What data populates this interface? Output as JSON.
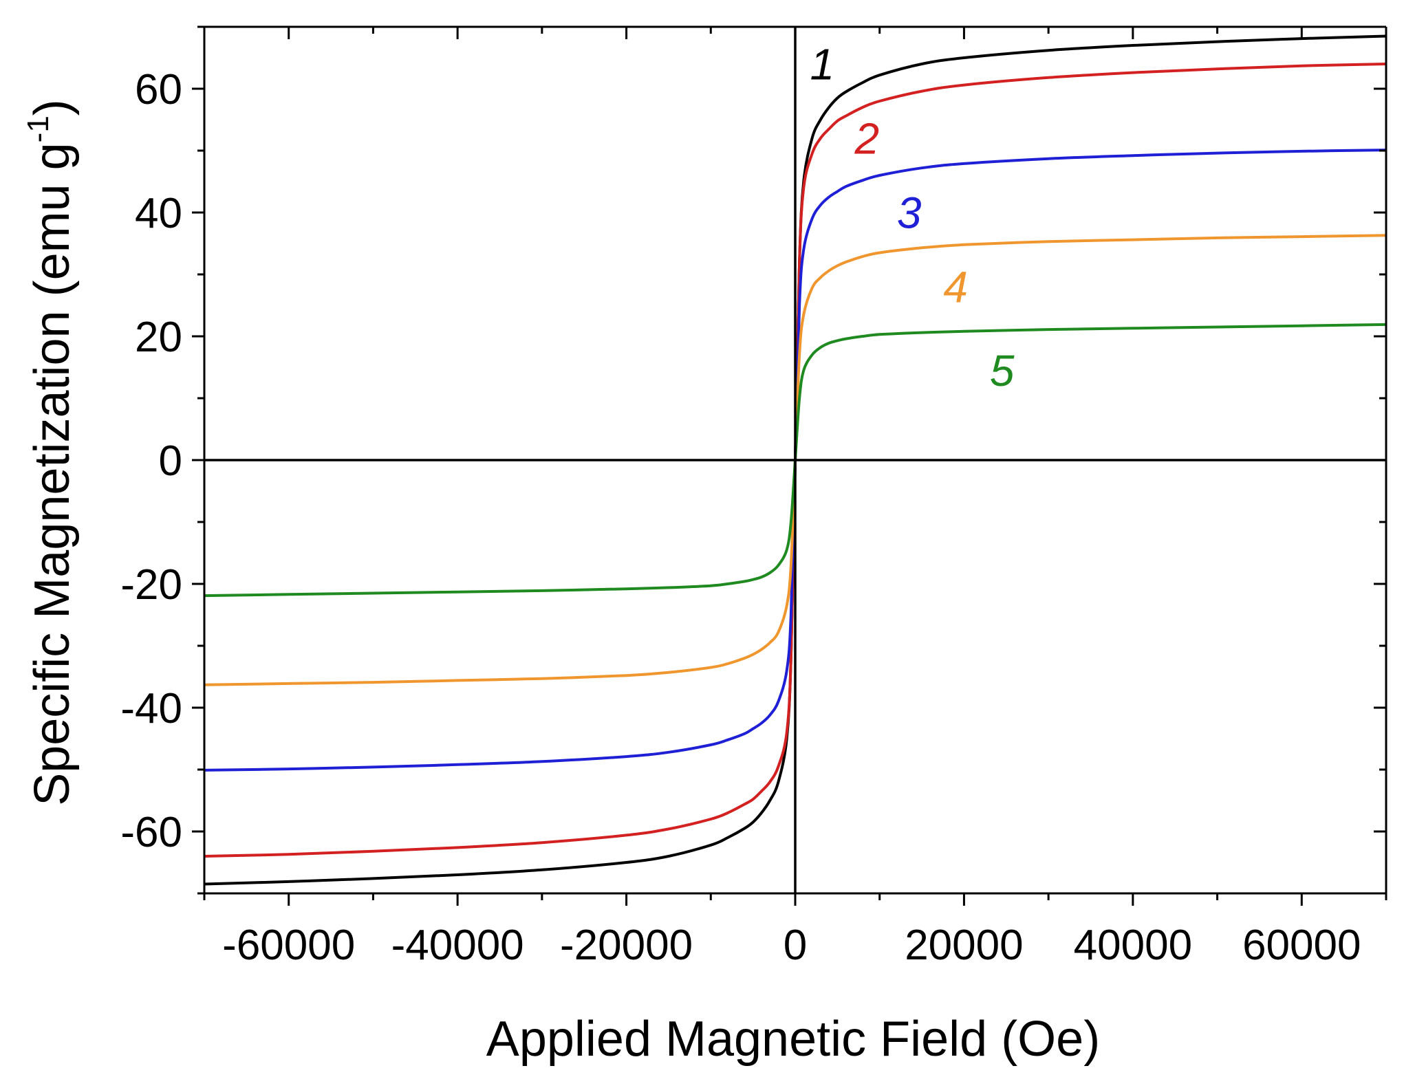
{
  "chart_data": {
    "type": "line",
    "title": "",
    "xlabel": "Applied Magnetic Field (Oe)",
    "ylabel_main": "Specific Magnetization (emu g",
    "ylabel_sup": "-1",
    "ylabel_end": ")",
    "xlim": [
      -70000,
      70000
    ],
    "ylim": [
      -70,
      70
    ],
    "x_ticks": [
      -60000,
      -40000,
      -20000,
      0,
      20000,
      40000,
      60000
    ],
    "x_tick_labels": [
      "-60000",
      "-40000",
      "-20000",
      "0",
      "20000",
      "40000",
      "60000"
    ],
    "y_ticks": [
      -60,
      -40,
      -20,
      0,
      20,
      40,
      60
    ],
    "y_tick_labels": [
      "-60",
      "-40",
      "-20",
      "0",
      "20",
      "40",
      "60"
    ],
    "grid": false,
    "zero_lines": true,
    "series": [
      {
        "name": "1",
        "color": "#000000",
        "x": [
          0,
          500,
          1000,
          2000,
          3000,
          4000,
          5000,
          6000,
          8000,
          10000,
          15000,
          20000,
          30000,
          40000,
          50000,
          60000,
          70000
        ],
        "values": [
          0,
          32,
          45,
          52,
          55,
          57,
          58.5,
          59.5,
          61,
          62.2,
          64,
          65,
          66.2,
          67,
          67.6,
          68.1,
          68.5
        ]
      },
      {
        "name": "2",
        "color": "#d32020",
        "x": [
          0,
          500,
          1000,
          2000,
          3000,
          4000,
          5000,
          6000,
          8000,
          10000,
          15000,
          20000,
          30000,
          40000,
          50000,
          60000,
          70000
        ],
        "values": [
          0,
          32,
          44,
          49.5,
          52,
          53.5,
          54.8,
          55.6,
          57,
          58,
          59.6,
          60.6,
          61.8,
          62.6,
          63.2,
          63.7,
          64
        ]
      },
      {
        "name": "3",
        "color": "#1f1fd6",
        "x": [
          0,
          500,
          1000,
          2000,
          3000,
          4000,
          5000,
          6000,
          8000,
          10000,
          15000,
          20000,
          30000,
          40000,
          50000,
          60000,
          70000
        ],
        "values": [
          0,
          25,
          34,
          39,
          41.2,
          42.5,
          43.4,
          44.2,
          45.2,
          46,
          47.2,
          47.9,
          48.7,
          49.2,
          49.6,
          49.9,
          50.1
        ]
      },
      {
        "name": "4",
        "color": "#f0962e",
        "x": [
          0,
          500,
          1000,
          2000,
          3000,
          4000,
          5000,
          6000,
          8000,
          10000,
          15000,
          20000,
          30000,
          40000,
          50000,
          60000,
          70000
        ],
        "values": [
          0,
          17,
          23.5,
          27.8,
          29.5,
          30.6,
          31.4,
          32,
          32.9,
          33.5,
          34.3,
          34.8,
          35.3,
          35.6,
          35.9,
          36.1,
          36.3
        ]
      },
      {
        "name": "5",
        "color": "#1f8a1f",
        "x": [
          0,
          500,
          1000,
          2000,
          3000,
          4000,
          5000,
          6000,
          8000,
          10000,
          15000,
          20000,
          30000,
          40000,
          50000,
          60000,
          70000
        ],
        "values": [
          0,
          10,
          14.5,
          17,
          18.2,
          18.9,
          19.3,
          19.6,
          20,
          20.3,
          20.6,
          20.8,
          21.1,
          21.3,
          21.5,
          21.7,
          21.9
        ]
      }
    ],
    "annotations": [
      {
        "text": "1",
        "series": "1",
        "x": 3200,
        "y": 61.5
      },
      {
        "text": "2",
        "series": "2",
        "x": 8500,
        "y": 49.5
      },
      {
        "text": "3",
        "series": "3",
        "x": 13500,
        "y": 37.5
      },
      {
        "text": "4",
        "series": "4",
        "x": 19000,
        "y": 25.5
      },
      {
        "text": "5",
        "series": "5",
        "x": 24500,
        "y": 12
      }
    ]
  }
}
